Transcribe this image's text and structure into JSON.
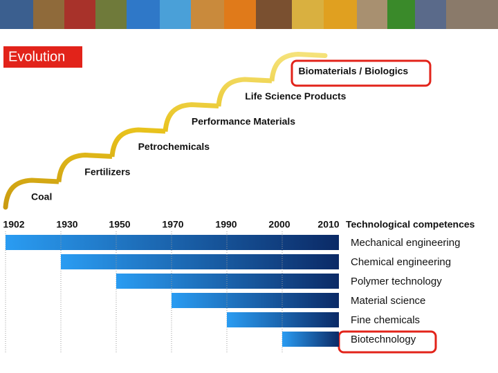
{
  "title": "Evolution",
  "stages": [
    "Coal",
    "Fertilizers",
    "Petrochemicals",
    "Performance Materials",
    "Life Science Products",
    "Biomaterials / Biologics"
  ],
  "years": [
    "1902",
    "1930",
    "1950",
    "1970",
    "1990",
    "2000",
    "2010"
  ],
  "competences_heading": "Technological competences",
  "competences": [
    "Mechanical engineering",
    "Chemical engineering",
    "Polymer technology",
    "Material science",
    "Fine chemicals",
    "Biotechnology"
  ]
}
